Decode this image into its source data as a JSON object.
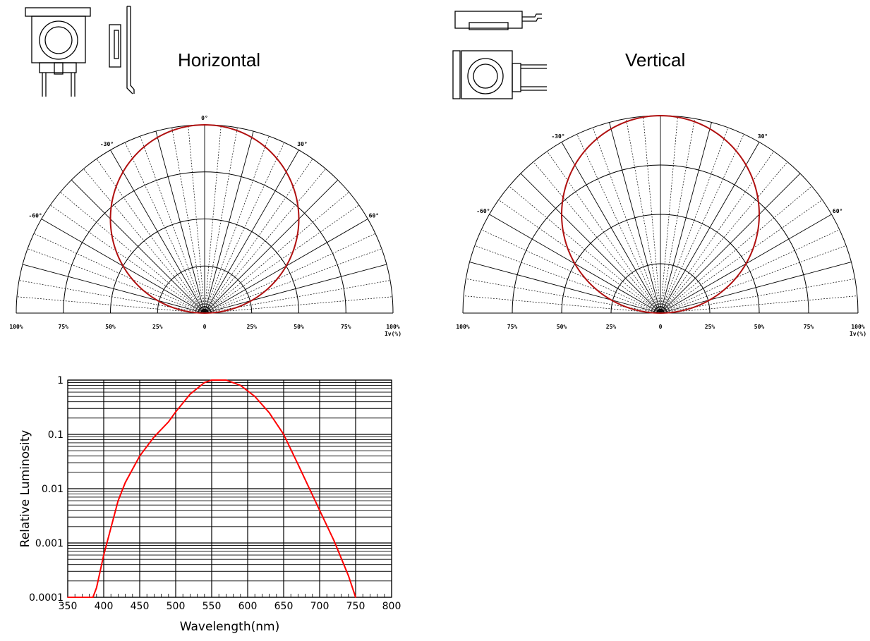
{
  "labels": {
    "horizontal": "Horizontal",
    "vertical": "Vertical"
  },
  "colors": {
    "curve": "#b01010",
    "spectrum": "#ff0000",
    "grid": "#000000"
  },
  "chart_data": [
    {
      "type": "polar",
      "title": "Horizontal",
      "angle_labels": [
        "0°",
        "-30°",
        "30°",
        "-60°",
        "60°"
      ],
      "radial_tick_labels": [
        "100%",
        "75%",
        "50%",
        "25%",
        "0",
        "25%",
        "50%",
        "75%",
        "100%"
      ],
      "unit_label": "Iv(%)",
      "angles_deg": [
        -90,
        -80,
        -70,
        -60,
        -50,
        -40,
        -30,
        -20,
        -10,
        0,
        10,
        20,
        30,
        40,
        50,
        60,
        70,
        80,
        90
      ],
      "intensity": [
        0,
        0.17,
        0.34,
        0.5,
        0.64,
        0.77,
        0.87,
        0.94,
        0.985,
        1.0,
        0.985,
        0.94,
        0.87,
        0.77,
        0.64,
        0.5,
        0.34,
        0.17,
        0
      ]
    },
    {
      "type": "polar",
      "title": "Vertical",
      "angle_labels": [
        "0°",
        "-30°",
        "30°",
        "-60°",
        "60°"
      ],
      "radial_tick_labels": [
        "100%",
        "75%",
        "50%",
        "25%",
        "0",
        "25%",
        "50%",
        "75%",
        "100%"
      ],
      "unit_label": "Iv(%)",
      "angles_deg": [
        -90,
        -80,
        -70,
        -60,
        -50,
        -40,
        -30,
        -20,
        -10,
        0,
        10,
        20,
        30,
        40,
        50,
        60,
        70,
        80,
        90
      ],
      "intensity": [
        0,
        0.17,
        0.34,
        0.5,
        0.64,
        0.77,
        0.87,
        0.94,
        0.985,
        1.0,
        0.985,
        0.94,
        0.87,
        0.77,
        0.64,
        0.5,
        0.34,
        0.17,
        0
      ]
    },
    {
      "type": "line",
      "xlabel": "Wavelength(nm)",
      "ylabel": "Relative Luminosity",
      "xlim": [
        350,
        800
      ],
      "ylim": [
        0.0001,
        1
      ],
      "yscale": "log",
      "x_ticks": [
        "350",
        "400",
        "450",
        "500",
        "550",
        "600",
        "650",
        "700",
        "750",
        "800"
      ],
      "y_ticks": [
        "0.0001",
        "0.001",
        "0.01",
        "0.1",
        "1"
      ],
      "x": [
        350,
        385,
        390,
        400,
        420,
        430,
        450,
        470,
        490,
        500,
        520,
        540,
        550,
        560,
        570,
        590,
        610,
        630,
        650,
        670,
        700,
        720,
        740,
        750
      ],
      "y": [
        0.0001,
        0.0001,
        0.00015,
        0.0006,
        0.006,
        0.013,
        0.04,
        0.09,
        0.17,
        0.26,
        0.55,
        0.9,
        1.0,
        1.0,
        1.0,
        0.8,
        0.5,
        0.25,
        0.1,
        0.028,
        0.004,
        0.0011,
        0.00025,
        0.0001
      ]
    }
  ]
}
